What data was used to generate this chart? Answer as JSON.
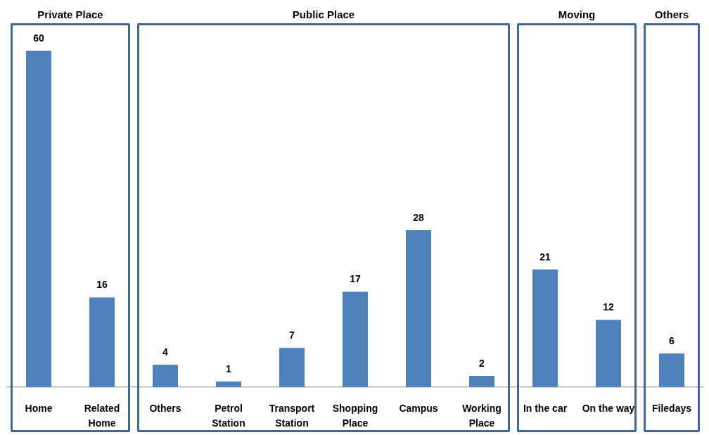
{
  "chart_data": {
    "type": "bar",
    "categories": [
      "Home",
      "Related Home",
      "Others",
      "Petrol Station",
      "Transport Station",
      "Shopping Place",
      "Campus",
      "Working Place",
      "In the car",
      "On the way",
      "Filedays"
    ],
    "values": [
      60,
      16,
      4,
      1,
      7,
      17,
      28,
      2,
      21,
      12,
      6
    ],
    "color": "#4f81bd",
    "data_labels": true,
    "annotations": [
      "Private Place",
      "Public Place",
      "Moving",
      "Others"
    ]
  }
}
